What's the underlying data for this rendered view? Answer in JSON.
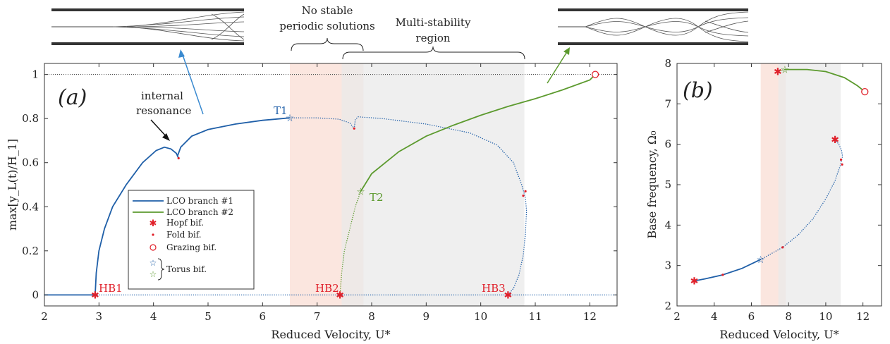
{
  "panel_a": {
    "label": "(a)",
    "xlabel": "Reduced Velocity, U*",
    "ylabel": "max[y_L(t)/H_1]"
  },
  "panel_b": {
    "label": "(b)",
    "xlabel": "Reduced Velocity, U*",
    "ylabel": "Base frequency, Ω₀"
  },
  "annotations": {
    "no_stable_l1": "No stable",
    "no_stable_l2": "periodic solutions",
    "multi_l1": "Multi-stability",
    "multi_l2": "region",
    "internal_l1": "internal",
    "internal_l2": "resonance",
    "T1": "T1",
    "T2": "T2",
    "HB1": "HB1",
    "HB2": "HB2",
    "HB3": "HB3"
  },
  "legend": {
    "branch1": "LCO branch #1",
    "branch2": "LCO branch #2",
    "hopf": "Hopf bif.",
    "fold": "Fold bif.",
    "grazing": "Grazing bif.",
    "torus": "Torus bif."
  },
  "colors": {
    "branch1": "#1f5fa8",
    "branch2": "#5c9a2e",
    "bif_red": "#e0202a",
    "unstable_band": "#fbe3dc",
    "multi_band": "#e9e9e9"
  },
  "chart_data": [
    {
      "type": "line",
      "panel": "a",
      "xlim": [
        2,
        12.5
      ],
      "ylim": [
        -0.05,
        1.05
      ],
      "x_ticks": [
        2,
        3,
        4,
        5,
        6,
        7,
        8,
        9,
        10,
        11,
        12
      ],
      "y_ticks": [
        0,
        0.2,
        0.4,
        0.6,
        0.8,
        1
      ],
      "y_tick_labels": [
        "0",
        "0.2",
        "0.4",
        "0.6",
        "0.8",
        "1"
      ],
      "shaded_regions": [
        {
          "kind": "no stable periodic solutions",
          "x": [
            6.5,
            7.85
          ]
        },
        {
          "kind": "multi-stability",
          "x": [
            7.45,
            10.8
          ]
        }
      ],
      "reference_line_y": 1.0,
      "series": [
        {
          "name": "LCO branch #1",
          "style": "solid",
          "points": [
            [
              2,
              0
            ],
            [
              2.93,
              0
            ]
          ]
        },
        {
          "name": "LCO branch #1",
          "style": "dotted",
          "points": [
            [
              2.93,
              0
            ],
            [
              12.5,
              0
            ]
          ]
        },
        {
          "name": "LCO branch #1",
          "style": "solid",
          "points": [
            [
              2.93,
              0
            ],
            [
              2.95,
              0.1
            ],
            [
              3.0,
              0.2
            ],
            [
              3.1,
              0.3
            ],
            [
              3.25,
              0.4
            ],
            [
              3.5,
              0.5
            ],
            [
              3.8,
              0.6
            ],
            [
              4.05,
              0.655
            ],
            [
              4.2,
              0.67
            ],
            [
              4.32,
              0.662
            ],
            [
              4.42,
              0.642
            ],
            [
              4.46,
              0.62
            ]
          ]
        },
        {
          "name": "LCO branch #1",
          "style": "solid",
          "points": [
            [
              4.44,
              0.63
            ],
            [
              4.5,
              0.67
            ],
            [
              4.7,
              0.72
            ],
            [
              5.0,
              0.75
            ],
            [
              5.5,
              0.775
            ],
            [
              6.0,
              0.792
            ],
            [
              6.5,
              0.803
            ]
          ]
        },
        {
          "name": "LCO branch #1",
          "style": "dotted",
          "points": [
            [
              6.5,
              0.803
            ],
            [
              7.0,
              0.803
            ],
            [
              7.4,
              0.797
            ],
            [
              7.6,
              0.78
            ],
            [
              7.68,
              0.755
            ]
          ]
        },
        {
          "name": "LCO branch #1",
          "style": "dotted",
          "points": [
            [
              7.68,
              0.755
            ],
            [
              7.7,
              0.795
            ],
            [
              7.75,
              0.808
            ],
            [
              8.2,
              0.8
            ],
            [
              9.0,
              0.775
            ],
            [
              9.8,
              0.735
            ],
            [
              10.3,
              0.68
            ],
            [
              10.6,
              0.6
            ],
            [
              10.75,
              0.5
            ],
            [
              10.82,
              0.44
            ],
            [
              10.84,
              0.38
            ],
            [
              10.82,
              0.28
            ],
            [
              10.78,
              0.18
            ],
            [
              10.7,
              0.09
            ],
            [
              10.6,
              0.03
            ],
            [
              10.5,
              0
            ]
          ]
        },
        {
          "name": "LCO branch #2",
          "style": "dotted",
          "points": [
            [
              7.42,
              0
            ],
            [
              7.45,
              0.1
            ],
            [
              7.5,
              0.2
            ],
            [
              7.6,
              0.3
            ],
            [
              7.7,
              0.4
            ],
            [
              7.8,
              0.47
            ]
          ]
        },
        {
          "name": "LCO branch #2",
          "style": "solid",
          "points": [
            [
              7.8,
              0.47
            ],
            [
              8.0,
              0.55
            ],
            [
              8.5,
              0.65
            ],
            [
              9.0,
              0.72
            ],
            [
              9.5,
              0.77
            ],
            [
              10.0,
              0.815
            ],
            [
              10.5,
              0.855
            ],
            [
              11.0,
              0.89
            ],
            [
              11.5,
              0.93
            ],
            [
              12.0,
              0.975
            ],
            [
              12.1,
              1.0
            ]
          ]
        }
      ],
      "markers": [
        {
          "type": "hopf",
          "x": 2.93,
          "y": 0,
          "label": "HB1"
        },
        {
          "type": "hopf",
          "x": 7.42,
          "y": 0,
          "label": "HB2"
        },
        {
          "type": "hopf",
          "x": 10.5,
          "y": 0,
          "label": "HB3"
        },
        {
          "type": "fold",
          "x": 4.46,
          "y": 0.62
        },
        {
          "type": "fold",
          "x": 7.68,
          "y": 0.755
        },
        {
          "type": "fold",
          "x": 10.82,
          "y": 0.47
        },
        {
          "type": "fold",
          "x": 10.78,
          "y": 0.45
        },
        {
          "type": "grazing",
          "x": 12.1,
          "y": 1.0
        },
        {
          "type": "torus",
          "branch": 1,
          "x": 6.5,
          "y": 0.803,
          "label": "T1"
        },
        {
          "type": "torus",
          "branch": 2,
          "x": 7.8,
          "y": 0.47,
          "label": "T2"
        }
      ]
    },
    {
      "type": "line",
      "panel": "b",
      "xlim": [
        2,
        13
      ],
      "ylim": [
        2,
        8
      ],
      "x_ticks": [
        2,
        4,
        6,
        8,
        10,
        12
      ],
      "y_ticks": [
        2,
        3,
        4,
        5,
        6,
        7,
        8
      ],
      "shaded_regions": [
        {
          "kind": "no stable periodic solutions",
          "x": [
            6.5,
            7.85
          ]
        },
        {
          "kind": "multi-stability",
          "x": [
            7.45,
            10.8
          ]
        }
      ],
      "series": [
        {
          "name": "LCO branch #1",
          "style": "solid",
          "points": [
            [
              2.93,
              2.62
            ],
            [
              3.5,
              2.67
            ],
            [
              4.46,
              2.77
            ],
            [
              5.5,
              2.93
            ],
            [
              6.5,
              3.15
            ]
          ]
        },
        {
          "name": "LCO branch #1",
          "style": "dotted",
          "points": [
            [
              6.5,
              3.15
            ],
            [
              7.68,
              3.45
            ],
            [
              8.5,
              3.75
            ],
            [
              9.3,
              4.15
            ],
            [
              10.0,
              4.65
            ],
            [
              10.5,
              5.1
            ],
            [
              10.8,
              5.5
            ],
            [
              10.9,
              5.7
            ],
            [
              10.85,
              5.85
            ],
            [
              10.7,
              6.0
            ],
            [
              10.5,
              6.12
            ]
          ]
        },
        {
          "name": "LCO branch #2",
          "style": "dotted",
          "points": [
            [
              7.42,
              7.8
            ],
            [
              7.8,
              7.85
            ]
          ]
        },
        {
          "name": "LCO branch #2",
          "style": "solid",
          "points": [
            [
              7.8,
              7.85
            ],
            [
              9.0,
              7.85
            ],
            [
              10.0,
              7.8
            ],
            [
              11.0,
              7.65
            ],
            [
              11.7,
              7.45
            ],
            [
              12.1,
              7.3
            ]
          ]
        }
      ],
      "markers": [
        {
          "type": "hopf",
          "x": 2.93,
          "y": 2.62
        },
        {
          "type": "hopf",
          "x": 7.42,
          "y": 7.8
        },
        {
          "type": "hopf",
          "x": 10.5,
          "y": 6.12
        },
        {
          "type": "fold",
          "x": 4.46,
          "y": 2.77
        },
        {
          "type": "fold",
          "x": 7.68,
          "y": 3.45
        },
        {
          "type": "fold",
          "x": 10.82,
          "y": 5.62
        },
        {
          "type": "fold",
          "x": 10.88,
          "y": 5.5
        },
        {
          "type": "grazing",
          "x": 12.1,
          "y": 7.3
        },
        {
          "type": "torus",
          "branch": 1,
          "x": 6.5,
          "y": 3.15
        },
        {
          "type": "torus",
          "branch": 2,
          "x": 7.8,
          "y": 7.85
        }
      ]
    }
  ]
}
